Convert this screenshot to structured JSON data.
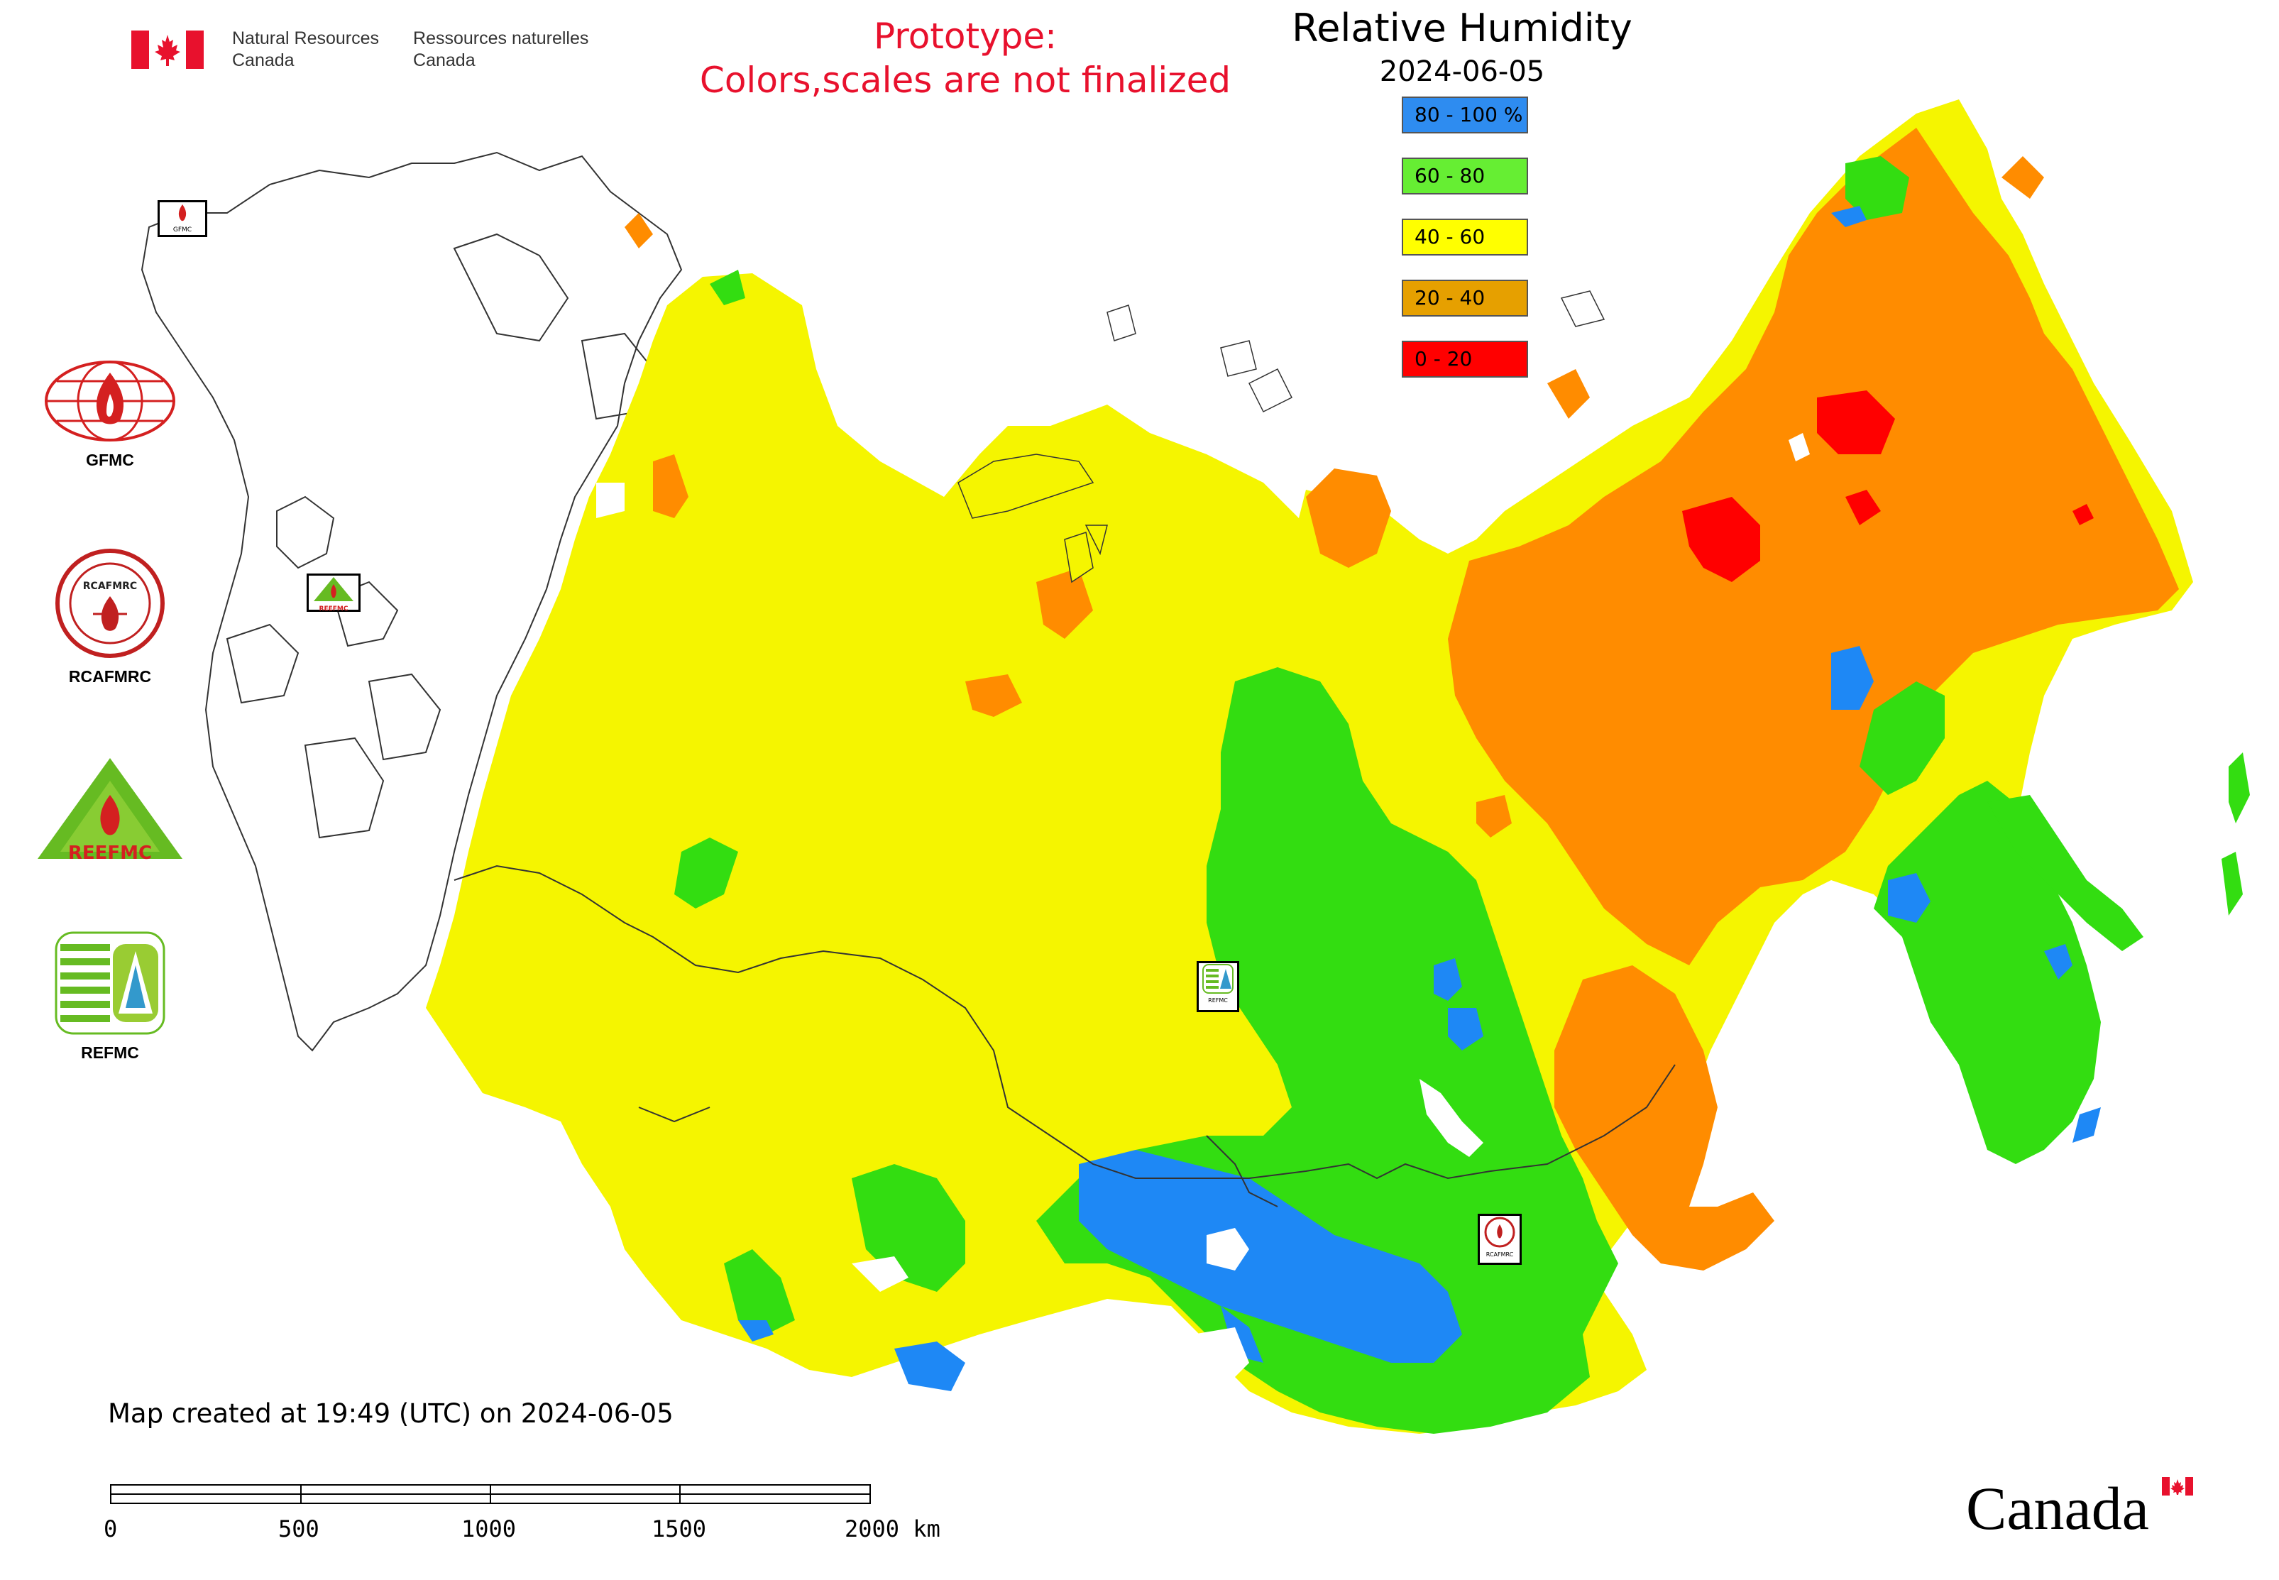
{
  "header": {
    "agency_en_line1": "Natural Resources",
    "agency_en_line2": "Canada",
    "agency_fr_line1": "Ressources naturelles",
    "agency_fr_line2": "Canada",
    "prototype_line1": "Prototype:",
    "prototype_line2": "Colors,scales are not finalized"
  },
  "legend": {
    "title": "Relative Humidity",
    "date": "2024-06-05",
    "items": [
      {
        "label": "80 - 100 %",
        "color": "#2e8cf0"
      },
      {
        "label": "60 - 80",
        "color": "#66ee33"
      },
      {
        "label": "40 - 60",
        "color": "#ffff00"
      },
      {
        "label": "20 - 40",
        "color": "#e6a000"
      },
      {
        "label": "0 - 20",
        "color": "#ff0000"
      }
    ]
  },
  "map_colors": {
    "humid_80_100": "#1e88f5",
    "humid_60_80": "#33dd11",
    "humid_40_60": "#f5f500",
    "humid_20_40": "#ff8c00",
    "humid_0_20": "#ff0000",
    "boundary": "#333333"
  },
  "side_logos": [
    {
      "name": "GFMC",
      "label": "GFMC",
      "badge_text": "GFMC"
    },
    {
      "name": "RCAFMRC",
      "label": "RCAFMRC",
      "badge_text": "RCAFMRC"
    },
    {
      "name": "REEFMC",
      "label": "",
      "badge_text": "REEFMC"
    },
    {
      "name": "REFMC",
      "label": "REFMC",
      "badge_text": ""
    }
  ],
  "map_markers": [
    {
      "name": "gfmc-marker",
      "text": "GFMC"
    },
    {
      "name": "reefmc-marker",
      "text": "REEFMC"
    },
    {
      "name": "refmc-marker",
      "text": "REFMC"
    },
    {
      "name": "rcafmrc-marker",
      "text": "RCAFMRC"
    }
  ],
  "footer": {
    "created": "Map created at 19:49 (UTC) on 2024-06-05",
    "scale_labels": [
      "0",
      "500",
      "1000",
      "1500",
      "2000 km"
    ],
    "canada_wordmark": "Canada"
  }
}
